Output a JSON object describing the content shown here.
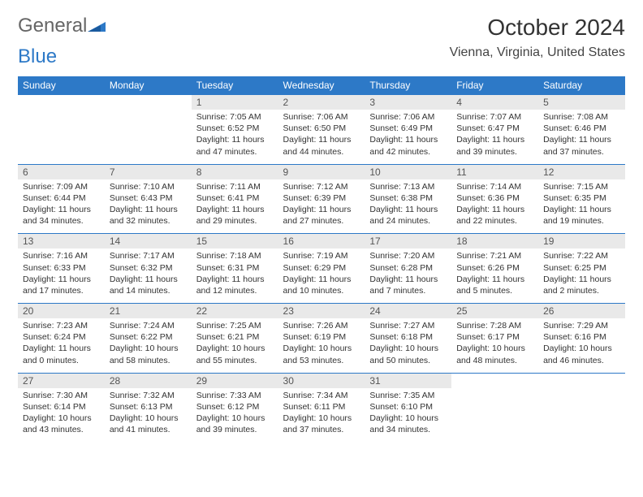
{
  "logo": {
    "text1": "General",
    "text2": "Blue"
  },
  "title": "October 2024",
  "location": "Vienna, Virginia, United States",
  "colors": {
    "accent": "#2d79c7",
    "header_bg": "#2d79c7",
    "header_text": "#ffffff",
    "daynum_bg": "#e9e9e9",
    "background": "#ffffff",
    "text": "#333333",
    "logo_gray": "#666666"
  },
  "day_headers": [
    "Sunday",
    "Monday",
    "Tuesday",
    "Wednesday",
    "Thursday",
    "Friday",
    "Saturday"
  ],
  "weeks": [
    {
      "nums": [
        "",
        "",
        "1",
        "2",
        "3",
        "4",
        "5"
      ],
      "details": [
        null,
        null,
        {
          "sunrise": "Sunrise: 7:05 AM",
          "sunset": "Sunset: 6:52 PM",
          "daylight": "Daylight: 11 hours and 47 minutes."
        },
        {
          "sunrise": "Sunrise: 7:06 AM",
          "sunset": "Sunset: 6:50 PM",
          "daylight": "Daylight: 11 hours and 44 minutes."
        },
        {
          "sunrise": "Sunrise: 7:06 AM",
          "sunset": "Sunset: 6:49 PM",
          "daylight": "Daylight: 11 hours and 42 minutes."
        },
        {
          "sunrise": "Sunrise: 7:07 AM",
          "sunset": "Sunset: 6:47 PM",
          "daylight": "Daylight: 11 hours and 39 minutes."
        },
        {
          "sunrise": "Sunrise: 7:08 AM",
          "sunset": "Sunset: 6:46 PM",
          "daylight": "Daylight: 11 hours and 37 minutes."
        }
      ]
    },
    {
      "nums": [
        "6",
        "7",
        "8",
        "9",
        "10",
        "11",
        "12"
      ],
      "details": [
        {
          "sunrise": "Sunrise: 7:09 AM",
          "sunset": "Sunset: 6:44 PM",
          "daylight": "Daylight: 11 hours and 34 minutes."
        },
        {
          "sunrise": "Sunrise: 7:10 AM",
          "sunset": "Sunset: 6:43 PM",
          "daylight": "Daylight: 11 hours and 32 minutes."
        },
        {
          "sunrise": "Sunrise: 7:11 AM",
          "sunset": "Sunset: 6:41 PM",
          "daylight": "Daylight: 11 hours and 29 minutes."
        },
        {
          "sunrise": "Sunrise: 7:12 AM",
          "sunset": "Sunset: 6:39 PM",
          "daylight": "Daylight: 11 hours and 27 minutes."
        },
        {
          "sunrise": "Sunrise: 7:13 AM",
          "sunset": "Sunset: 6:38 PM",
          "daylight": "Daylight: 11 hours and 24 minutes."
        },
        {
          "sunrise": "Sunrise: 7:14 AM",
          "sunset": "Sunset: 6:36 PM",
          "daylight": "Daylight: 11 hours and 22 minutes."
        },
        {
          "sunrise": "Sunrise: 7:15 AM",
          "sunset": "Sunset: 6:35 PM",
          "daylight": "Daylight: 11 hours and 19 minutes."
        }
      ]
    },
    {
      "nums": [
        "13",
        "14",
        "15",
        "16",
        "17",
        "18",
        "19"
      ],
      "details": [
        {
          "sunrise": "Sunrise: 7:16 AM",
          "sunset": "Sunset: 6:33 PM",
          "daylight": "Daylight: 11 hours and 17 minutes."
        },
        {
          "sunrise": "Sunrise: 7:17 AM",
          "sunset": "Sunset: 6:32 PM",
          "daylight": "Daylight: 11 hours and 14 minutes."
        },
        {
          "sunrise": "Sunrise: 7:18 AM",
          "sunset": "Sunset: 6:31 PM",
          "daylight": "Daylight: 11 hours and 12 minutes."
        },
        {
          "sunrise": "Sunrise: 7:19 AM",
          "sunset": "Sunset: 6:29 PM",
          "daylight": "Daylight: 11 hours and 10 minutes."
        },
        {
          "sunrise": "Sunrise: 7:20 AM",
          "sunset": "Sunset: 6:28 PM",
          "daylight": "Daylight: 11 hours and 7 minutes."
        },
        {
          "sunrise": "Sunrise: 7:21 AM",
          "sunset": "Sunset: 6:26 PM",
          "daylight": "Daylight: 11 hours and 5 minutes."
        },
        {
          "sunrise": "Sunrise: 7:22 AM",
          "sunset": "Sunset: 6:25 PM",
          "daylight": "Daylight: 11 hours and 2 minutes."
        }
      ]
    },
    {
      "nums": [
        "20",
        "21",
        "22",
        "23",
        "24",
        "25",
        "26"
      ],
      "details": [
        {
          "sunrise": "Sunrise: 7:23 AM",
          "sunset": "Sunset: 6:24 PM",
          "daylight": "Daylight: 11 hours and 0 minutes."
        },
        {
          "sunrise": "Sunrise: 7:24 AM",
          "sunset": "Sunset: 6:22 PM",
          "daylight": "Daylight: 10 hours and 58 minutes."
        },
        {
          "sunrise": "Sunrise: 7:25 AM",
          "sunset": "Sunset: 6:21 PM",
          "daylight": "Daylight: 10 hours and 55 minutes."
        },
        {
          "sunrise": "Sunrise: 7:26 AM",
          "sunset": "Sunset: 6:19 PM",
          "daylight": "Daylight: 10 hours and 53 minutes."
        },
        {
          "sunrise": "Sunrise: 7:27 AM",
          "sunset": "Sunset: 6:18 PM",
          "daylight": "Daylight: 10 hours and 50 minutes."
        },
        {
          "sunrise": "Sunrise: 7:28 AM",
          "sunset": "Sunset: 6:17 PM",
          "daylight": "Daylight: 10 hours and 48 minutes."
        },
        {
          "sunrise": "Sunrise: 7:29 AM",
          "sunset": "Sunset: 6:16 PM",
          "daylight": "Daylight: 10 hours and 46 minutes."
        }
      ]
    },
    {
      "nums": [
        "27",
        "28",
        "29",
        "30",
        "31",
        "",
        ""
      ],
      "details": [
        {
          "sunrise": "Sunrise: 7:30 AM",
          "sunset": "Sunset: 6:14 PM",
          "daylight": "Daylight: 10 hours and 43 minutes."
        },
        {
          "sunrise": "Sunrise: 7:32 AM",
          "sunset": "Sunset: 6:13 PM",
          "daylight": "Daylight: 10 hours and 41 minutes."
        },
        {
          "sunrise": "Sunrise: 7:33 AM",
          "sunset": "Sunset: 6:12 PM",
          "daylight": "Daylight: 10 hours and 39 minutes."
        },
        {
          "sunrise": "Sunrise: 7:34 AM",
          "sunset": "Sunset: 6:11 PM",
          "daylight": "Daylight: 10 hours and 37 minutes."
        },
        {
          "sunrise": "Sunrise: 7:35 AM",
          "sunset": "Sunset: 6:10 PM",
          "daylight": "Daylight: 10 hours and 34 minutes."
        },
        null,
        null
      ]
    }
  ]
}
